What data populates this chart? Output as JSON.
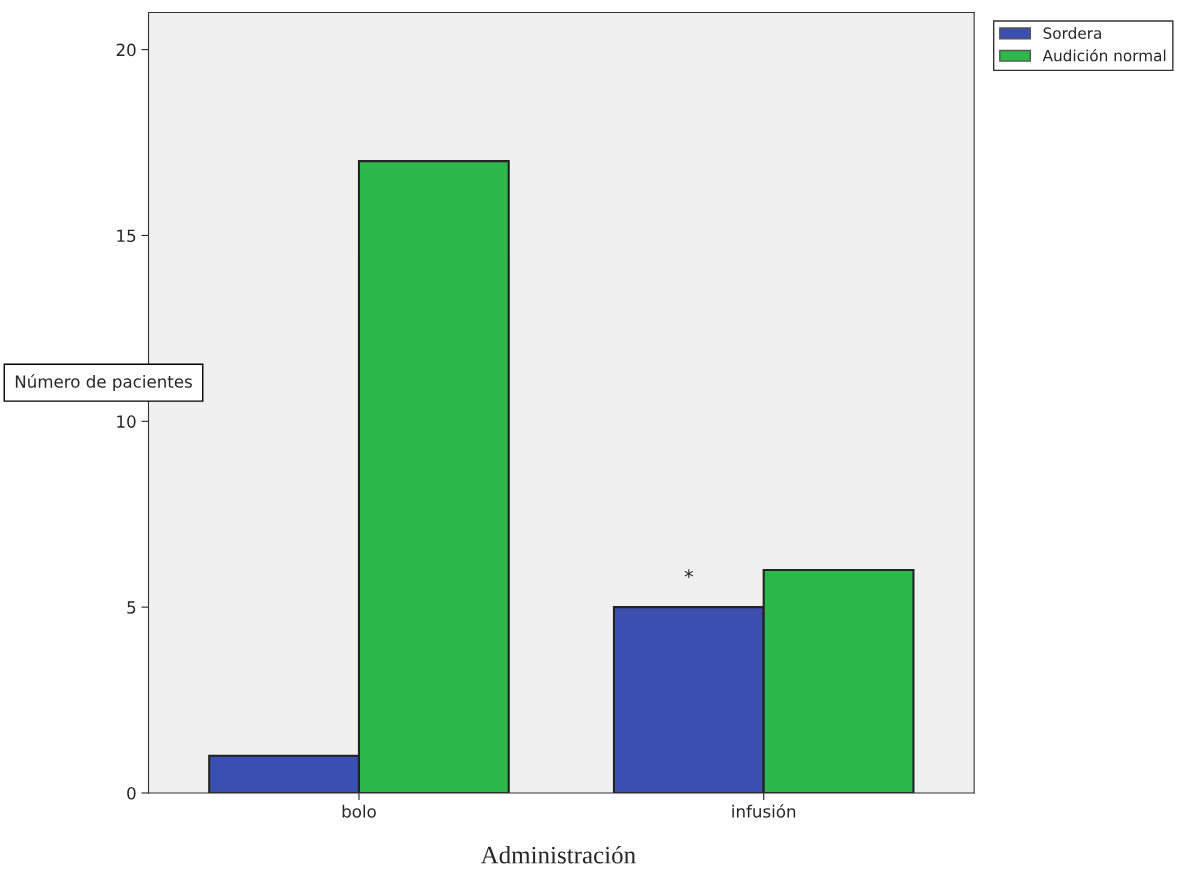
{
  "chart_data": {
    "type": "bar",
    "xlabel": "Administración",
    "ylabel": "Número de pacientes",
    "categories": [
      "bolo",
      "infusión"
    ],
    "series": [
      {
        "name": "Sordera",
        "color": "#3a4fb0",
        "values": [
          1,
          5
        ]
      },
      {
        "name": "Audición normal",
        "color": "#2db84a",
        "values": [
          17,
          6
        ]
      }
    ],
    "ylim": [
      0,
      21
    ],
    "yticks": [
      0,
      5,
      10,
      15,
      20
    ],
    "grid": false,
    "legend": "top right",
    "annotations": [
      "*"
    ]
  }
}
